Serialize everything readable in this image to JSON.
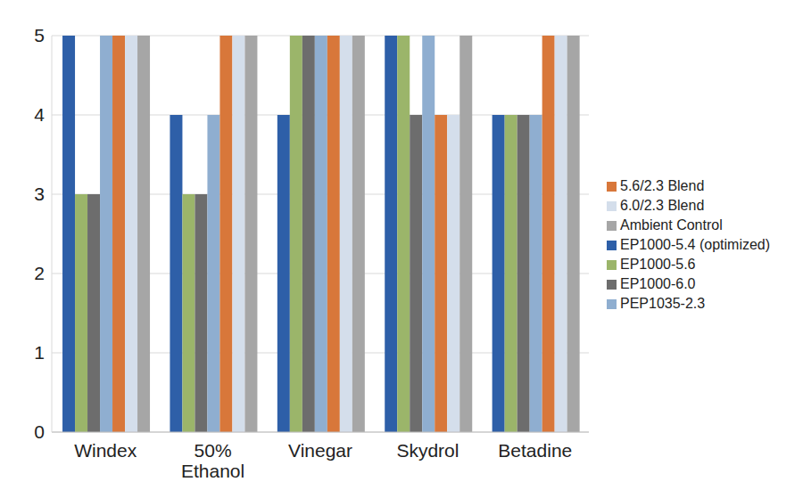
{
  "chart_data": {
    "type": "bar",
    "categories": [
      "Windex",
      "50% Ethanol",
      "Vinegar",
      "Skydrol",
      "Betadine"
    ],
    "series": [
      {
        "name": "EP1000-5.4 (optimized)",
        "color": "#2e5fa8",
        "values": [
          5,
          4,
          4,
          5,
          4
        ]
      },
      {
        "name": "EP1000-5.6",
        "color": "#9bb56a",
        "values": [
          3,
          3,
          5,
          5,
          4
        ]
      },
      {
        "name": "EP1000-6.0",
        "color": "#6d6d6d",
        "values": [
          3,
          3,
          5,
          4,
          4
        ]
      },
      {
        "name": "PEP1035-2.3",
        "color": "#8faed0",
        "values": [
          5,
          4,
          5,
          5,
          4
        ]
      },
      {
        "name": "5.6/2.3 Blend",
        "color": "#d8773a",
        "values": [
          5,
          5,
          5,
          4,
          5
        ]
      },
      {
        "name": "6.0/2.3 Blend",
        "color": "#d4deeb",
        "values": [
          5,
          5,
          5,
          4,
          5
        ]
      },
      {
        "name": "Ambient Control",
        "color": "#a6a6a6",
        "values": [
          5,
          5,
          5,
          5,
          5
        ]
      }
    ],
    "ylim": [
      0,
      5
    ],
    "yticks": [
      0,
      1,
      2,
      3,
      4,
      5
    ],
    "grid": true,
    "legend": "right"
  }
}
